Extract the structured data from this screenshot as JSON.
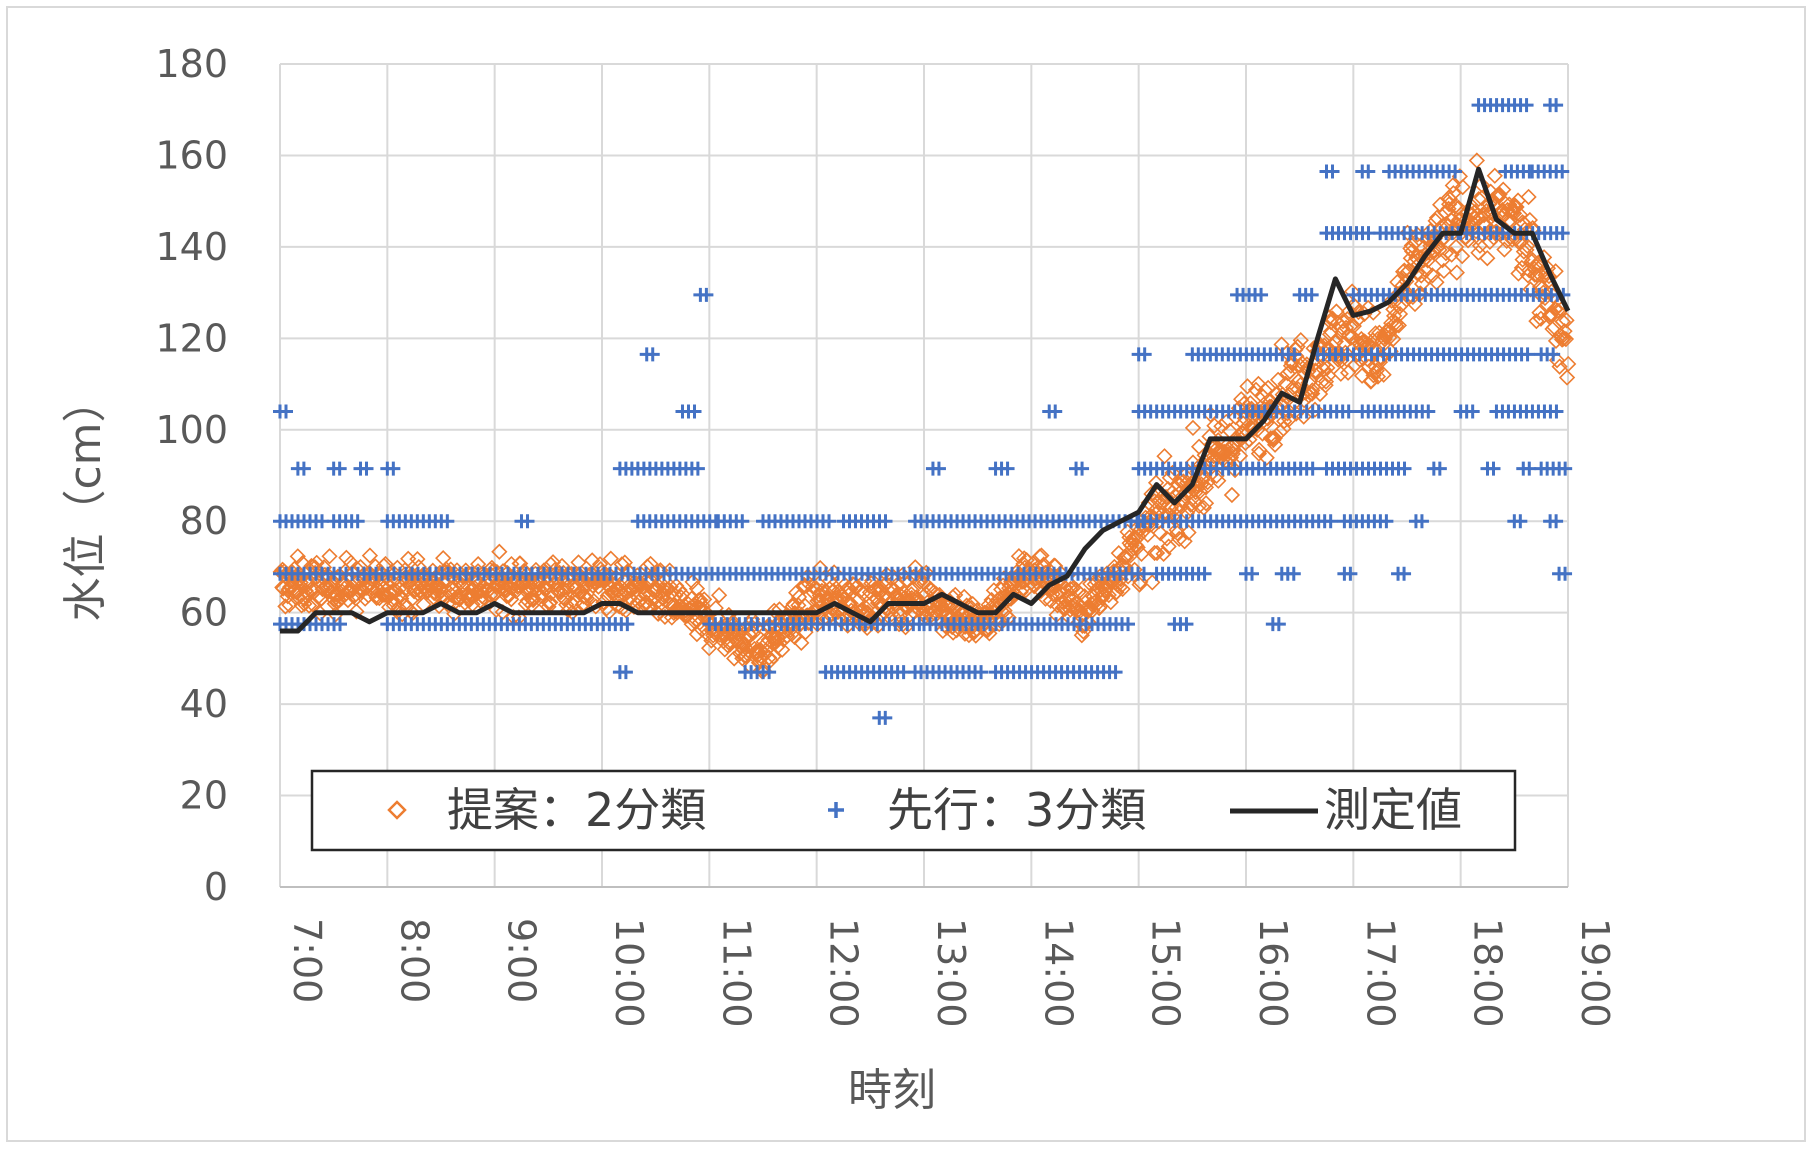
{
  "chart_data": {
    "type": "scatter",
    "title": "",
    "xlabel": "時刻",
    "ylabel": "水位（cm）",
    "xlim": [
      "7:00",
      "19:00"
    ],
    "ylim": [
      0,
      180
    ],
    "x_ticks": [
      "7:00",
      "8:00",
      "9:00",
      "10:00",
      "11:00",
      "12:00",
      "13:00",
      "14:00",
      "15:00",
      "16:00",
      "17:00",
      "18:00",
      "19:00"
    ],
    "y_ticks": [
      0,
      20,
      40,
      60,
      80,
      100,
      120,
      140,
      160,
      180
    ],
    "grid": true,
    "legend_position": "bottom-inside",
    "series": [
      {
        "name": "提案：2分類",
        "kind": "scatter",
        "marker": "diamond-open",
        "color": "#ED7D31",
        "center": [
          [
            "7:00",
            66
          ],
          [
            "7:30",
            66
          ],
          [
            "8:00",
            66
          ],
          [
            "8:30",
            66
          ],
          [
            "9:00",
            66
          ],
          [
            "9:30",
            66
          ],
          [
            "10:00",
            66
          ],
          [
            "10:30",
            64
          ],
          [
            "11:00",
            58
          ],
          [
            "11:30",
            52
          ],
          [
            "12:00",
            63
          ],
          [
            "12:30",
            62
          ],
          [
            "13:00",
            64
          ],
          [
            "13:30",
            57
          ],
          [
            "14:00",
            70
          ],
          [
            "14:30",
            60
          ],
          [
            "15:00",
            75
          ],
          [
            "15:30",
            88
          ],
          [
            "16:00",
            100
          ],
          [
            "16:30",
            112
          ],
          [
            "17:00",
            122
          ],
          [
            "17:15",
            115
          ],
          [
            "17:30",
            132
          ],
          [
            "18:00",
            147
          ],
          [
            "18:30",
            145
          ],
          [
            "19:00",
            120
          ]
        ]
      },
      {
        "name": "先行：3分類",
        "kind": "scatter",
        "marker": "plus",
        "color": "#4472C4",
        "bands": [
          {
            "y": 37,
            "ranges": [
              [
                "12:35",
                "12:40"
              ]
            ]
          },
          {
            "y": 47,
            "ranges": [
              [
                "10:10",
                "10:15"
              ],
              [
                "11:20",
                "11:35"
              ],
              [
                "12:05",
                "12:50"
              ],
              [
                "12:55",
                "13:35"
              ],
              [
                "13:40",
                "14:50"
              ]
            ]
          },
          {
            "y": 57.5,
            "ranges": [
              [
                "7:00",
                "7:35"
              ],
              [
                "8:00",
                "10:15"
              ],
              [
                "11:00",
                "13:00"
              ],
              [
                "13:00",
                "14:55"
              ],
              [
                "15:20",
                "15:30"
              ],
              [
                "16:15",
                "16:20"
              ]
            ]
          },
          {
            "y": 68.5,
            "ranges": [
              [
                "7:00",
                "15:05"
              ],
              [
                "15:10",
                "15:40"
              ],
              [
                "16:00",
                "16:05"
              ],
              [
                "16:20",
                "16:30"
              ],
              [
                "16:55",
                "17:00"
              ],
              [
                "17:25",
                "17:30"
              ],
              [
                "18:55",
                "19:00"
              ]
            ]
          },
          {
            "y": 80,
            "ranges": [
              [
                "7:00",
                "7:25"
              ],
              [
                "7:30",
                "7:45"
              ],
              [
                "8:00",
                "8:35"
              ],
              [
                "9:15",
                "9:20"
              ],
              [
                "10:20",
                "11:05"
              ],
              [
                "11:05",
                "11:20"
              ],
              [
                "11:30",
                "12:10"
              ],
              [
                "12:15",
                "12:40"
              ],
              [
                "12:55",
                "15:05"
              ],
              [
                "15:00",
                "16:50"
              ],
              [
                "16:55",
                "17:20"
              ],
              [
                "17:35",
                "17:40"
              ],
              [
                "18:30",
                "18:35"
              ],
              [
                "18:50",
                "18:55"
              ]
            ]
          },
          {
            "y": 91.5,
            "ranges": [
              [
                "7:10",
                "7:15"
              ],
              [
                "7:30",
                "7:35"
              ],
              [
                "7:45",
                "7:50"
              ],
              [
                "8:00",
                "8:05"
              ],
              [
                "10:10",
                "10:55"
              ],
              [
                "13:05",
                "13:10"
              ],
              [
                "13:40",
                "13:50"
              ],
              [
                "14:25",
                "14:30"
              ],
              [
                "15:00",
                "16:40"
              ],
              [
                "16:45",
                "17:30"
              ],
              [
                "17:45",
                "17:50"
              ],
              [
                "18:15",
                "18:20"
              ],
              [
                "18:35",
                "18:40"
              ],
              [
                "18:45",
                "19:00"
              ]
            ]
          },
          {
            "y": 104,
            "ranges": [
              [
                "7:00",
                "7:05"
              ],
              [
                "10:45",
                "10:55"
              ],
              [
                "14:10",
                "14:15"
              ],
              [
                "15:00",
                "17:00"
              ],
              [
                "17:05",
                "17:45"
              ],
              [
                "18:00",
                "18:10"
              ],
              [
                "18:20",
                "18:55"
              ]
            ]
          },
          {
            "y": 116.5,
            "ranges": [
              [
                "10:25",
                "10:30"
              ],
              [
                "15:00",
                "15:05"
              ],
              [
                "15:30",
                "16:30"
              ],
              [
                "16:40",
                "18:40"
              ],
              [
                "18:45",
                "18:55"
              ]
            ]
          },
          {
            "y": 129.5,
            "ranges": [
              [
                "10:55",
                "11:00"
              ],
              [
                "15:55",
                "16:10"
              ],
              [
                "16:30",
                "16:40"
              ],
              [
                "17:00",
                "19:00"
              ]
            ]
          },
          {
            "y": 143,
            "ranges": [
              [
                "16:45",
                "17:10"
              ],
              [
                "17:15",
                "18:00"
              ],
              [
                "18:00",
                "19:00"
              ]
            ]
          },
          {
            "y": 156.5,
            "ranges": [
              [
                "16:45",
                "16:50"
              ],
              [
                "17:05",
                "17:10"
              ],
              [
                "17:20",
                "18:00"
              ],
              [
                "18:25",
                "18:40"
              ],
              [
                "18:40",
                "19:00"
              ]
            ]
          },
          {
            "y": 171,
            "ranges": [
              [
                "18:10",
                "18:40"
              ],
              [
                "18:50",
                "18:55"
              ]
            ]
          }
        ]
      },
      {
        "name": "測定値",
        "kind": "line",
        "color": "#262626",
        "points": [
          [
            "7:00",
            56
          ],
          [
            "7:10",
            56
          ],
          [
            "7:20",
            60
          ],
          [
            "7:30",
            60
          ],
          [
            "7:40",
            60
          ],
          [
            "7:50",
            58
          ],
          [
            "8:00",
            60
          ],
          [
            "8:10",
            60
          ],
          [
            "8:20",
            60
          ],
          [
            "8:30",
            62
          ],
          [
            "8:40",
            60
          ],
          [
            "8:50",
            60
          ],
          [
            "9:00",
            62
          ],
          [
            "9:10",
            60
          ],
          [
            "9:20",
            60
          ],
          [
            "9:30",
            60
          ],
          [
            "9:40",
            60
          ],
          [
            "9:50",
            60
          ],
          [
            "10:00",
            62
          ],
          [
            "10:10",
            62
          ],
          [
            "10:20",
            60
          ],
          [
            "10:30",
            60
          ],
          [
            "10:40",
            60
          ],
          [
            "10:50",
            60
          ],
          [
            "11:00",
            60
          ],
          [
            "11:10",
            60
          ],
          [
            "11:20",
            60
          ],
          [
            "11:30",
            60
          ],
          [
            "11:40",
            60
          ],
          [
            "11:50",
            60
          ],
          [
            "12:00",
            60
          ],
          [
            "12:10",
            62
          ],
          [
            "12:20",
            60
          ],
          [
            "12:30",
            58
          ],
          [
            "12:40",
            62
          ],
          [
            "12:50",
            62
          ],
          [
            "13:00",
            62
          ],
          [
            "13:10",
            64
          ],
          [
            "13:20",
            62
          ],
          [
            "13:30",
            60
          ],
          [
            "13:40",
            60
          ],
          [
            "13:50",
            64
          ],
          [
            "14:00",
            62
          ],
          [
            "14:10",
            66
          ],
          [
            "14:20",
            68
          ],
          [
            "14:30",
            74
          ],
          [
            "14:40",
            78
          ],
          [
            "14:50",
            80
          ],
          [
            "15:00",
            82
          ],
          [
            "15:10",
            88
          ],
          [
            "15:20",
            84
          ],
          [
            "15:30",
            88
          ],
          [
            "15:40",
            98
          ],
          [
            "15:50",
            98
          ],
          [
            "16:00",
            98
          ],
          [
            "16:10",
            102
          ],
          [
            "16:20",
            108
          ],
          [
            "16:30",
            106
          ],
          [
            "16:40",
            120
          ],
          [
            "16:50",
            133
          ],
          [
            "17:00",
            125
          ],
          [
            "17:10",
            126
          ],
          [
            "17:20",
            128
          ],
          [
            "17:30",
            132
          ],
          [
            "17:40",
            138
          ],
          [
            "17:50",
            143
          ],
          [
            "18:00",
            143
          ],
          [
            "18:10",
            157
          ],
          [
            "18:20",
            146
          ],
          [
            "18:30",
            143
          ],
          [
            "18:40",
            143
          ],
          [
            "18:50",
            134
          ],
          [
            "19:00",
            126
          ]
        ]
      }
    ]
  }
}
